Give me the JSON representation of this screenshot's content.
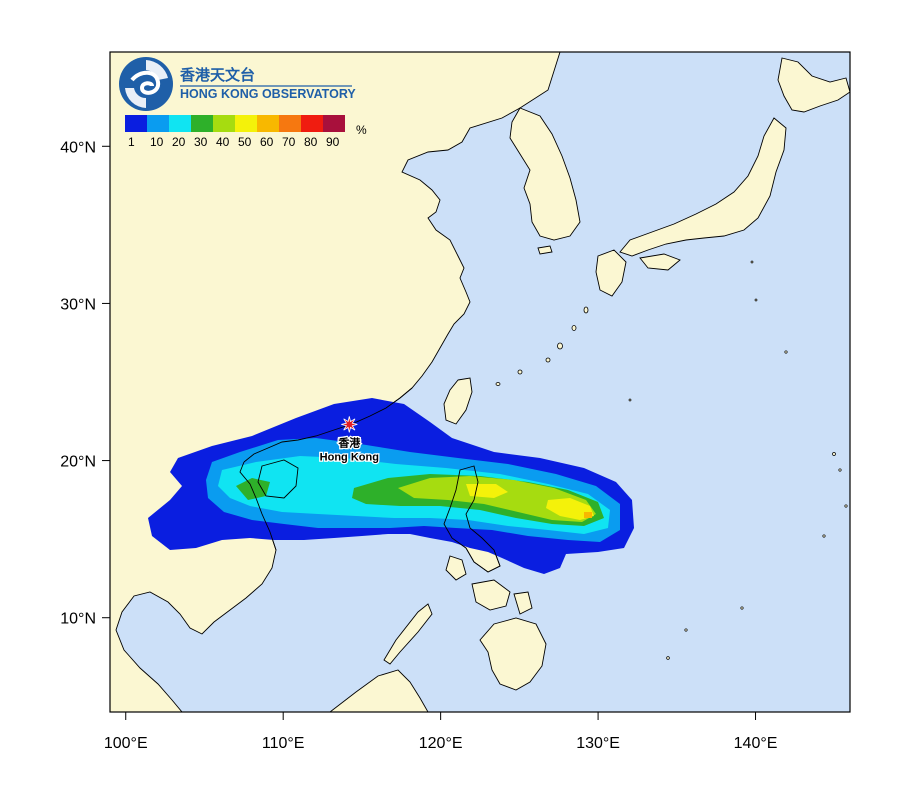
{
  "logo": {
    "name_zh": "香港天文台",
    "name_en": "Hong Kong Observatory"
  },
  "legend": {
    "unit": "%",
    "bins": [
      {
        "label": "1",
        "color": "#0a1ee0"
      },
      {
        "label": "10",
        "color": "#0a9cf0"
      },
      {
        "label": "20",
        "color": "#10e4f2"
      },
      {
        "label": "30",
        "color": "#2eb02a"
      },
      {
        "label": "40",
        "color": "#a6dc10"
      },
      {
        "label": "50",
        "color": "#f4f20a"
      },
      {
        "label": "60",
        "color": "#f8b800"
      },
      {
        "label": "70",
        "color": "#f67810"
      },
      {
        "label": "80",
        "color": "#f01c10"
      },
      {
        "label": "90",
        "color": "#a8103c"
      }
    ],
    "last_color": "#a8103c"
  },
  "axes": {
    "x_ticks": [
      "100°E",
      "110°E",
      "120°E",
      "130°E",
      "140°E"
    ],
    "y_ticks": [
      "10°N",
      "20°N",
      "30°N",
      "40°N"
    ],
    "lon_range": [
      99,
      146
    ],
    "lat_range": [
      4,
      46
    ]
  },
  "location": {
    "name_zh": "香港",
    "name_en": "Hong Kong",
    "lon": 114.2,
    "lat": 22.3
  },
  "colors": {
    "land": "#fbf7d2",
    "sea": "#cce0f8",
    "coast": "#000000",
    "marker": "#e21b23"
  }
}
